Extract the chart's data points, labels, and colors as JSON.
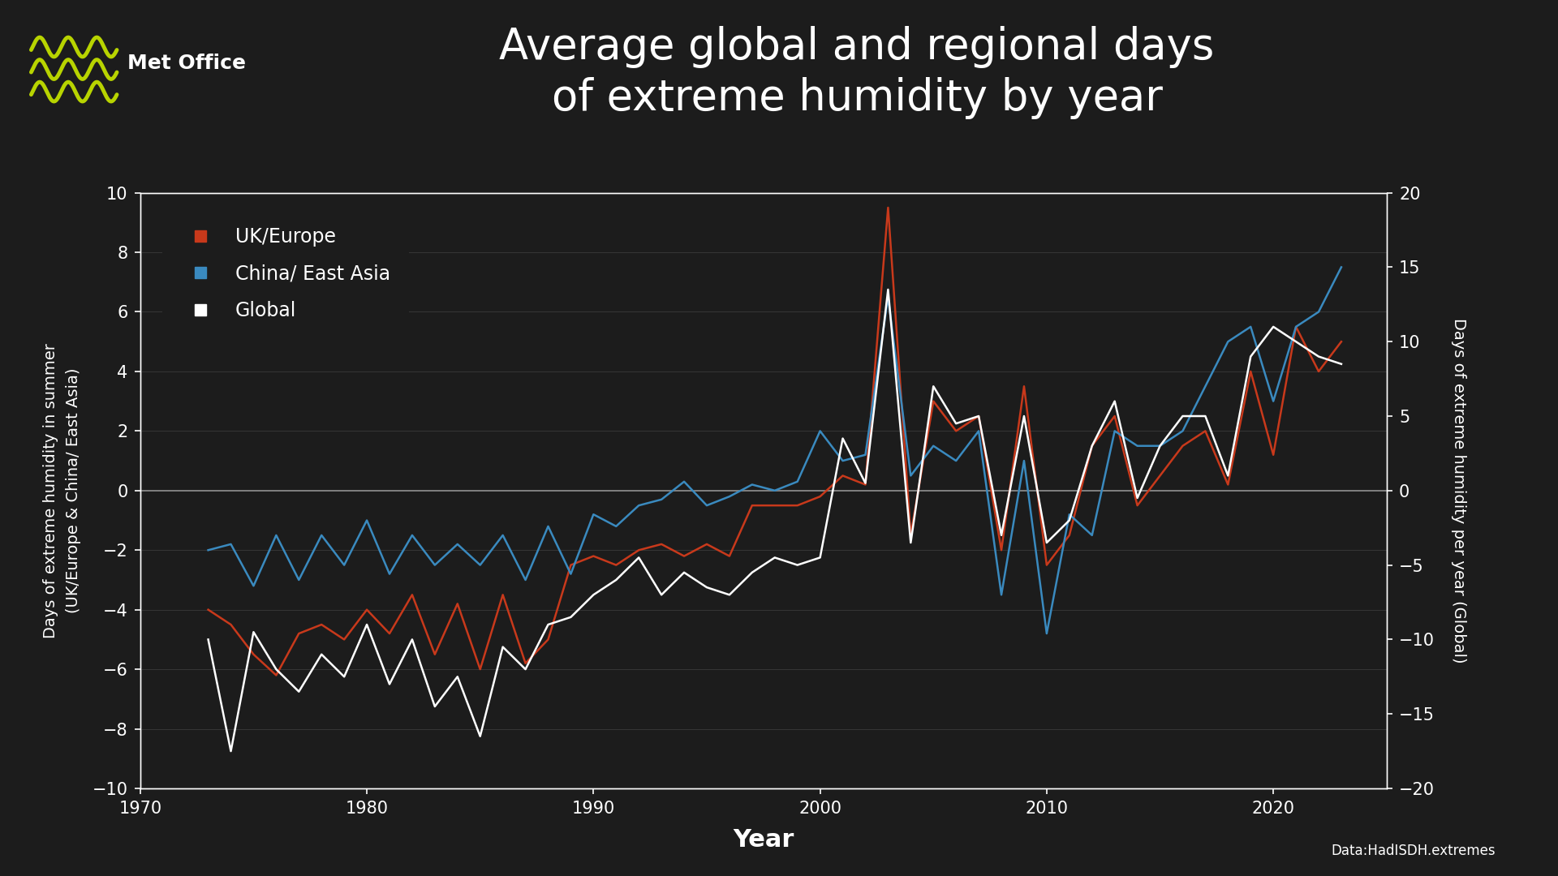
{
  "title": "Average global and regional days\nof extreme humidity by year",
  "xlabel": "Year",
  "ylabel_left": "Days of extreme humidity in summer\n(UK/Europe & China/ East Asia)",
  "ylabel_right": "Days of extreme humidity per year (Global)",
  "background_color": "#1c1c1c",
  "text_color": "#ffffff",
  "grid_color": "#3a3a3a",
  "zero_line_color": "#888888",
  "uk_europe_color": "#c8391b",
  "china_color": "#3a8abf",
  "global_color": "#ffffff",
  "xlim": [
    1970,
    2025
  ],
  "ylim_left": [
    -10,
    10
  ],
  "ylim_right": [
    -20,
    20
  ],
  "years": [
    1973,
    1974,
    1975,
    1976,
    1977,
    1978,
    1979,
    1980,
    1981,
    1982,
    1983,
    1984,
    1985,
    1986,
    1987,
    1988,
    1989,
    1990,
    1991,
    1992,
    1993,
    1994,
    1995,
    1996,
    1997,
    1998,
    1999,
    2000,
    2001,
    2002,
    2003,
    2004,
    2005,
    2006,
    2007,
    2008,
    2009,
    2010,
    2011,
    2012,
    2013,
    2014,
    2015,
    2016,
    2017,
    2018,
    2019,
    2020,
    2021,
    2022,
    2023
  ],
  "uk_europe": [
    -4.0,
    -4.5,
    -5.5,
    -6.2,
    -4.8,
    -4.5,
    -5.0,
    -4.0,
    -4.8,
    -3.5,
    -5.5,
    -3.8,
    -6.0,
    -3.5,
    -5.8,
    -5.0,
    -2.5,
    -2.2,
    -2.5,
    -2.0,
    -1.8,
    -2.2,
    -1.8,
    -2.2,
    -0.5,
    -0.5,
    -0.5,
    -0.2,
    0.5,
    0.2,
    9.5,
    -1.5,
    3.0,
    2.0,
    2.5,
    -2.0,
    3.5,
    -2.5,
    -1.5,
    1.5,
    2.5,
    -0.5,
    0.5,
    1.5,
    2.0,
    0.2,
    4.0,
    1.2,
    5.5,
    4.0,
    5.0
  ],
  "china_east_asia": [
    -2.0,
    -1.8,
    -3.2,
    -1.5,
    -3.0,
    -1.5,
    -2.5,
    -1.0,
    -2.8,
    -1.5,
    -2.5,
    -1.8,
    -2.5,
    -1.5,
    -3.0,
    -1.2,
    -2.8,
    -0.8,
    -1.2,
    -0.5,
    -0.3,
    0.3,
    -0.5,
    -0.2,
    0.2,
    0.0,
    0.3,
    2.0,
    1.0,
    1.2,
    6.5,
    0.5,
    1.5,
    1.0,
    2.0,
    -3.5,
    1.0,
    -4.8,
    -0.8,
    -1.5,
    2.0,
    1.5,
    1.5,
    2.0,
    3.5,
    5.0,
    5.5,
    3.0,
    5.5,
    6.0,
    7.5
  ],
  "global": [
    -10.0,
    -17.5,
    -9.5,
    -12.0,
    -13.5,
    -11.0,
    -12.5,
    -9.0,
    -13.0,
    -10.0,
    -14.5,
    -12.5,
    -16.5,
    -10.5,
    -12.0,
    -9.0,
    -8.5,
    -7.0,
    -6.0,
    -4.5,
    -7.0,
    -5.5,
    -6.5,
    -7.0,
    -5.5,
    -4.5,
    -5.0,
    -4.5,
    3.5,
    0.5,
    13.5,
    -3.5,
    7.0,
    4.5,
    5.0,
    -3.0,
    5.0,
    -3.5,
    -2.0,
    3.0,
    6.0,
    -0.5,
    3.0,
    5.0,
    5.0,
    1.0,
    9.0,
    11.0,
    10.0,
    9.0,
    8.5
  ],
  "legend_entries": [
    "UK/Europe",
    "China/ East Asia",
    "Global"
  ],
  "legend_colors": [
    "#c8391b",
    "#3a8abf",
    "#ffffff"
  ],
  "data_source": "Data:HadISDH.extremes",
  "xticks": [
    1970,
    1980,
    1990,
    2000,
    2010,
    2020
  ],
  "yticks_left": [
    -10,
    -8,
    -6,
    -4,
    -2,
    0,
    2,
    4,
    6,
    8,
    10
  ],
  "yticks_right": [
    -20,
    -15,
    -10,
    -5,
    0,
    5,
    10,
    15,
    20
  ],
  "logo_wave_color": "#b8d400",
  "logo_text": "Met Office",
  "title_fontsize": 38,
  "tick_fontsize": 15,
  "label_fontsize": 14,
  "xlabel_fontsize": 22
}
